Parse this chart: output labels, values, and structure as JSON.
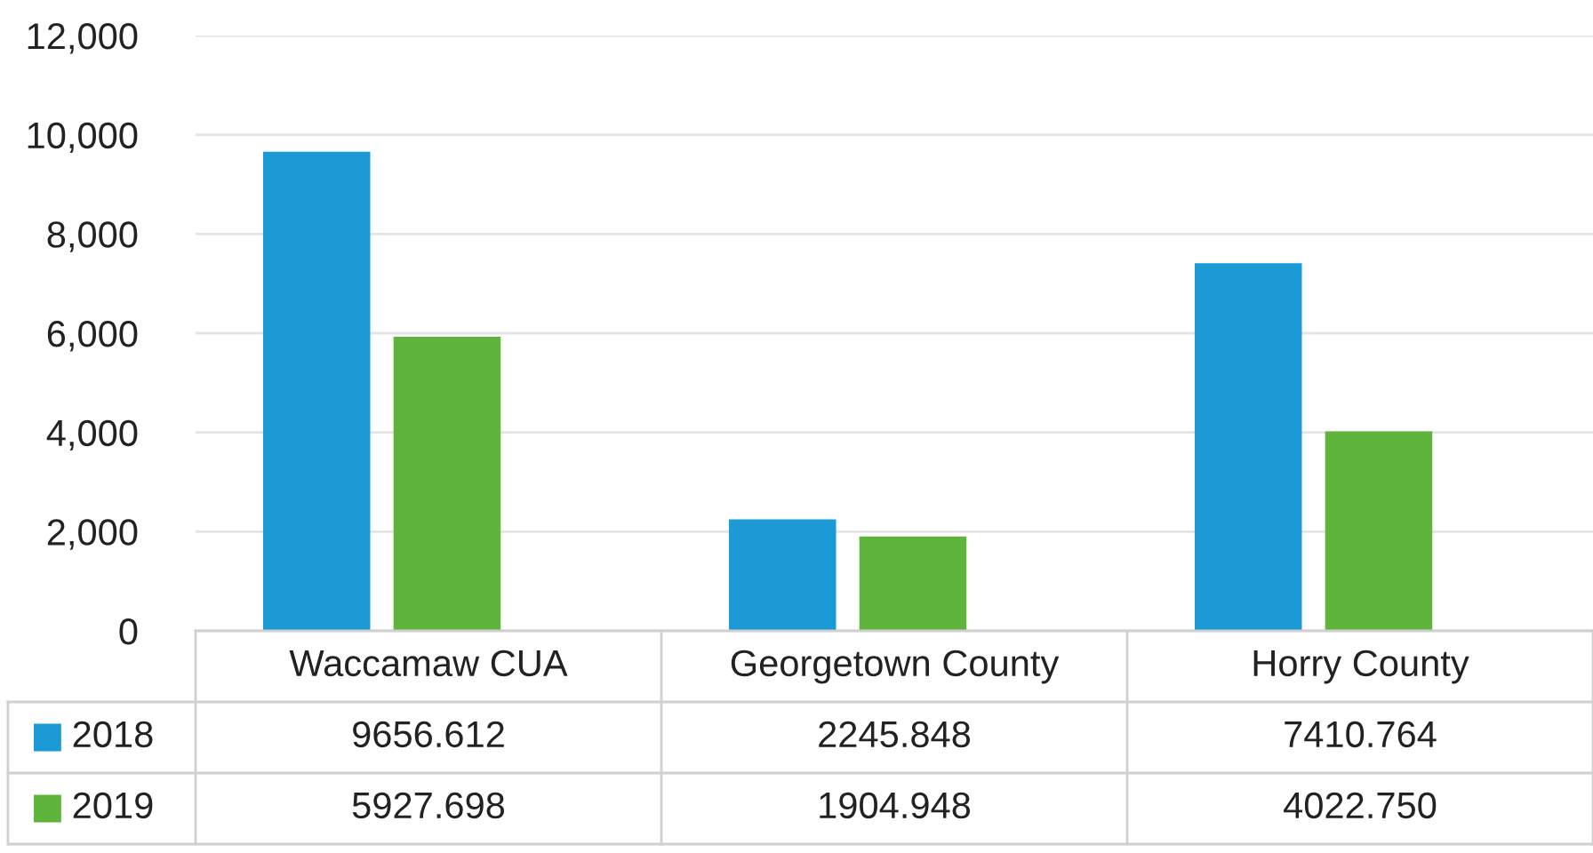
{
  "chart_data": {
    "type": "bar",
    "categories": [
      "Waccamaw CUA",
      "Georgetown County",
      "Horry County"
    ],
    "series": [
      {
        "name": "2018",
        "color": "#1b9ad6",
        "values": [
          9656.612,
          2245.848,
          7410.764
        ],
        "value_labels": [
          "9656.612",
          "2245.848",
          "7410.764"
        ]
      },
      {
        "name": "2019",
        "color": "#5fb43c",
        "values": [
          5927.698,
          1904.948,
          4022.75
        ],
        "value_labels": [
          "5927.698",
          "1904.948",
          "4022.750"
        ]
      }
    ],
    "ylim": [
      0,
      12000
    ],
    "yticks": [
      0,
      {
        "value": 2000,
        "label": "2,000"
      },
      {
        "value": 4000,
        "label": "4,000"
      },
      {
        "value": 6000,
        "label": "6,000"
      },
      {
        "value": 8000,
        "label": "8,000"
      },
      {
        "value": 10000,
        "label": "10,000"
      },
      {
        "value": 12000,
        "label": "12,000"
      }
    ],
    "grid": "y",
    "data_labels": true,
    "legend": "bottom left"
  }
}
